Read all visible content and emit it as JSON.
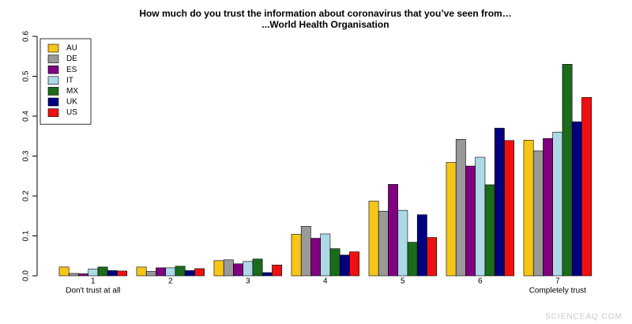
{
  "chart_data": {
    "type": "bar",
    "title": "How much do you trust the information about coronavirus that you’ve seen from…",
    "subtitle": "...World Health Organisation",
    "categories": [
      "1",
      "2",
      "3",
      "4",
      "5",
      "6",
      "7"
    ],
    "x_end_labels": [
      "Don't trust at all",
      "Completely trust"
    ],
    "series": [
      {
        "name": "AU",
        "color": "#f5c518",
        "values": [
          0.022,
          0.022,
          0.038,
          0.104,
          0.187,
          0.284,
          0.34
        ]
      },
      {
        "name": "DE",
        "color": "#999999",
        "values": [
          0.006,
          0.011,
          0.04,
          0.124,
          0.162,
          0.342,
          0.313
        ]
      },
      {
        "name": "ES",
        "color": "#800080",
        "values": [
          0.005,
          0.02,
          0.03,
          0.094,
          0.229,
          0.275,
          0.344
        ]
      },
      {
        "name": "IT",
        "color": "#add8e6",
        "values": [
          0.017,
          0.02,
          0.036,
          0.105,
          0.164,
          0.297,
          0.36
        ]
      },
      {
        "name": "MX",
        "color": "#1a6b1a",
        "values": [
          0.022,
          0.024,
          0.042,
          0.068,
          0.084,
          0.228,
          0.53
        ]
      },
      {
        "name": "UK",
        "color": "#00007f",
        "values": [
          0.013,
          0.013,
          0.008,
          0.052,
          0.153,
          0.37,
          0.386
        ]
      },
      {
        "name": "US",
        "color": "#ee1111",
        "values": [
          0.012,
          0.018,
          0.027,
          0.06,
          0.096,
          0.339,
          0.447
        ]
      }
    ],
    "ylim": [
      0,
      0.6
    ],
    "yticks": [
      {
        "value": 0,
        "label": "0.0"
      },
      0.1,
      0.2,
      0.3,
      0.4,
      0.5,
      0.6
    ],
    "legend": "top-left",
    "watermark": "SCIENCEAQ.COM"
  }
}
